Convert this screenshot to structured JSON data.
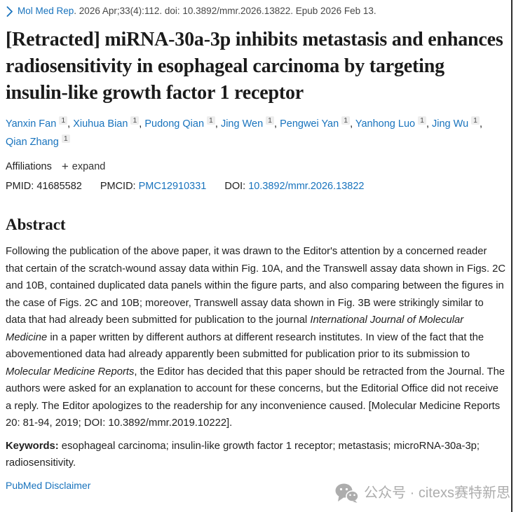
{
  "colors": {
    "link_blue": "#1873bd",
    "text_dark": "#212121",
    "citation_gray": "#474747",
    "sup_bg": "#ededed",
    "watermark_gray": "#adadad"
  },
  "citation": {
    "journal": "Mol Med Rep",
    "details": ". 2026 Apr;33(4):112. doi: 10.3892/mmr.2026.13822. Epub 2026 Feb 13."
  },
  "title": "[Retracted] miRNA-30a-3p inhibits metastasis and enhances radiosensitivity in esophageal carcinoma by targeting insulin-like growth factor 1 receptor",
  "authors": {
    "separator": ", ",
    "items": [
      {
        "name": "Yanxin Fan",
        "affiliation": "1"
      },
      {
        "name": "Xiuhua Bian",
        "affiliation": "1"
      },
      {
        "name": "Pudong Qian",
        "affiliation": "1"
      },
      {
        "name": "Jing Wen",
        "affiliation": "1"
      },
      {
        "name": "Pengwei Yan",
        "affiliation": "1"
      },
      {
        "name": "Yanhong Luo",
        "affiliation": "1"
      },
      {
        "name": "Jing Wu",
        "affiliation": "1"
      },
      {
        "name": "Qian Zhang",
        "affiliation": "1"
      }
    ]
  },
  "affiliations": {
    "label": "Affiliations",
    "expand_icon": "+",
    "expand_label": "expand"
  },
  "ids": {
    "pmid_label": "PMID:",
    "pmid": "41685582",
    "pmcid_label": "PMCID:",
    "pmcid": "PMC12910331",
    "doi_label": "DOI:",
    "doi": "10.3892/mmr.2026.13822"
  },
  "abstract": {
    "heading": "Abstract",
    "segments": [
      {
        "text": "Following the publication of the above paper, it was drawn to the Editor's attention by a concerned reader that certain of the scratch-wound assay data within Fig. 10A, and the Transwell assay data shown in Figs. 2C and 10B, contained duplicated data panels within the figure parts, and also comparing between the figures in the case of Figs. 2C and 10B; moreover, Transwell assay data shown in Fig. 3B were strikingly similar to data that had already been submitted for publication to the journal ",
        "italic": false
      },
      {
        "text": "International Journal of Molecular Medicine",
        "italic": true
      },
      {
        "text": " in a paper written by different authors at different research institutes. In view of the fact that the abovementioned data had already apparently been submitted for publication prior to its submission to ",
        "italic": false
      },
      {
        "text": "Molecular Medicine Reports",
        "italic": true
      },
      {
        "text": ", the Editor has decided that this paper should be retracted from the Journal. The authors were asked for an explanation to account for these concerns, but the Editorial Office did not receive a reply. The Editor apologizes to the readership for any inconvenience caused. [Molecular Medicine Reports 20: 81-94, 2019; DOI: 10.3892/mmr.2019.10222].",
        "italic": false
      }
    ]
  },
  "keywords": {
    "label": "Keywords:",
    "text": " esophageal carcinoma; insulin-like growth factor 1 receptor; metastasis; microRNA-30a-3p; radiosensitivity."
  },
  "footer": {
    "disclaimer": "PubMed Disclaimer"
  },
  "watermark": {
    "text": "公众号 · citexs赛特新思"
  }
}
